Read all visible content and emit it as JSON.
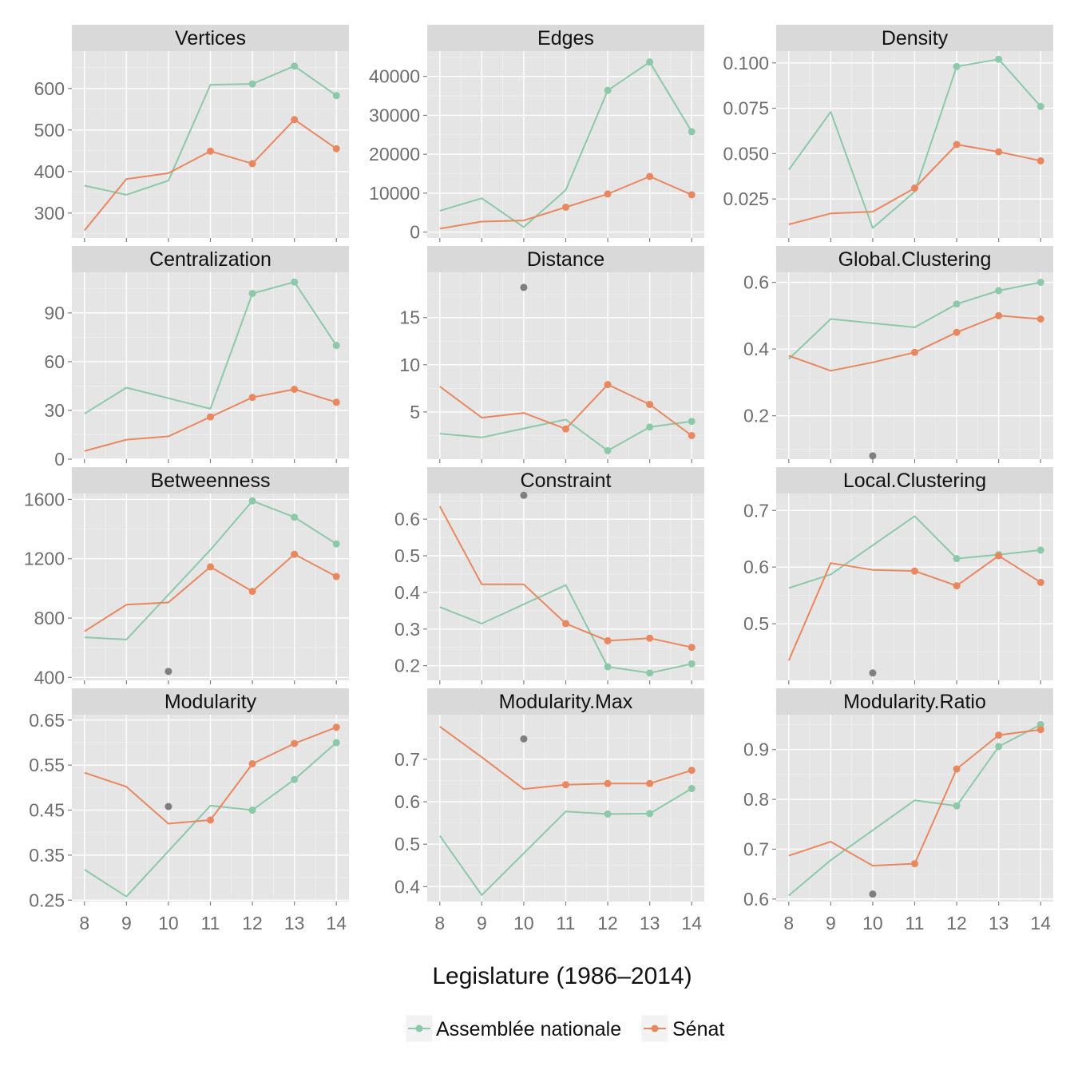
{
  "chart_data": {
    "type": "line",
    "xlabel": "Legislature (1986–2014)",
    "x_ticks": [
      8,
      9,
      10,
      11,
      12,
      13,
      14
    ],
    "xlim": [
      7.7,
      14.3
    ],
    "grid": true,
    "legend_position": "bottom",
    "legend": [
      {
        "name": "Assemblée nationale",
        "color": "#8cc9a9"
      },
      {
        "name": "Sénat",
        "color": "#e9875f"
      }
    ],
    "outlier_color": "#7f7f7f",
    "panels": [
      {
        "title": "Vertices",
        "ylim": [
          240,
          690
        ],
        "yticks": [
          300,
          400,
          500,
          600
        ],
        "series": [
          {
            "name": "Assemblée nationale",
            "x": [
              8,
              9,
              10,
              11,
              12,
              13,
              14
            ],
            "values": [
              366,
              344,
              378,
              609,
              611,
              654,
              583
            ],
            "points_from": 12
          },
          {
            "name": "Sénat",
            "x": [
              8,
              9,
              10,
              11,
              12,
              13,
              14
            ],
            "values": [
              258,
              382,
              396,
              449,
              419,
              525,
              455
            ],
            "points_from": 11
          }
        ]
      },
      {
        "title": "Edges",
        "ylim": [
          -1500,
          46500
        ],
        "yticks": [
          0,
          10000,
          20000,
          30000,
          40000
        ],
        "series": [
          {
            "name": "Assemblée nationale",
            "x": [
              8,
              9,
              10,
              11,
              12,
              13,
              14
            ],
            "values": [
              5500,
              8700,
              1300,
              10800,
              36400,
              43700,
              25800
            ],
            "points_from": 12
          },
          {
            "name": "Sénat",
            "x": [
              8,
              9,
              10,
              11,
              12,
              13,
              14
            ],
            "values": [
              900,
              2700,
              3000,
              6400,
              9800,
              14300,
              9600
            ],
            "points_from": 11
          }
        ]
      },
      {
        "title": "Density",
        "ylim": [
          0.0035,
          0.1065
        ],
        "yticks": [
          0.025,
          0.05,
          0.075,
          0.1
        ],
        "ytick_labels": [
          "0.025",
          "0.050",
          "0.075",
          "0.100"
        ],
        "series": [
          {
            "name": "Assemblée nationale",
            "x": [
              8,
              9,
              10,
              11,
              12,
              13,
              14
            ],
            "values": [
              0.041,
              0.073,
              0.009,
              0.029,
              0.098,
              0.102,
              0.076
            ],
            "points_from": 12
          },
          {
            "name": "Sénat",
            "x": [
              8,
              9,
              10,
              11,
              12,
              13,
              14
            ],
            "values": [
              0.011,
              0.017,
              0.018,
              0.031,
              0.055,
              0.051,
              0.046
            ],
            "points_from": 11
          }
        ]
      },
      {
        "title": "Centralization",
        "ylim": [
          0,
          115
        ],
        "yticks": [
          0,
          30,
          60,
          90
        ],
        "series": [
          {
            "name": "Assemblée nationale",
            "x": [
              8,
              9,
              11,
              12,
              13,
              14
            ],
            "values": [
              28,
              44,
              31,
              102,
              109,
              70
            ],
            "points_from": 12
          },
          {
            "name": "Sénat",
            "x": [
              8,
              9,
              10,
              11,
              12,
              13,
              14
            ],
            "values": [
              5,
              12,
              14,
              26,
              38,
              43,
              35
            ],
            "points_from": 11
          }
        ]
      },
      {
        "title": "Distance",
        "ylim": [
          0,
          19.8
        ],
        "yticks": [
          5,
          10,
          15
        ],
        "outliers": [
          {
            "x": 10,
            "y": 18.2
          }
        ],
        "series": [
          {
            "name": "Assemblée nationale",
            "x": [
              8,
              9,
              11,
              12,
              13,
              14
            ],
            "values": [
              2.7,
              2.3,
              4.2,
              0.9,
              3.4,
              4.0
            ],
            "points_from": 12
          },
          {
            "name": "Sénat",
            "x": [
              8,
              9,
              10,
              11,
              12,
              13,
              14
            ],
            "values": [
              7.7,
              4.4,
              4.9,
              3.2,
              7.9,
              5.8,
              2.5
            ],
            "points_from": 11
          }
        ]
      },
      {
        "title": "Global.Clustering",
        "ylim": [
          0.07,
          0.63
        ],
        "yticks": [
          0.2,
          0.4,
          0.6
        ],
        "outliers": [
          {
            "x": 10,
            "y": 0.08
          }
        ],
        "series": [
          {
            "name": "Assemblée nationale",
            "x": [
              8,
              9,
              11,
              12,
              13,
              14
            ],
            "values": [
              0.37,
              0.49,
              0.465,
              0.535,
              0.575,
              0.6
            ],
            "points_from": 12
          },
          {
            "name": "Sénat",
            "x": [
              8,
              9,
              10,
              11,
              12,
              13,
              14
            ],
            "values": [
              0.38,
              0.335,
              0.36,
              0.39,
              0.45,
              0.5,
              0.49
            ],
            "points_from": 11
          }
        ]
      },
      {
        "title": "Betweenness",
        "ylim": [
          380,
          1640
        ],
        "yticks": [
          400,
          800,
          1200,
          1600
        ],
        "outliers": [
          {
            "x": 10,
            "y": 440
          }
        ],
        "series": [
          {
            "name": "Assemblée nationale",
            "x": [
              8,
              9,
              11,
              12,
              13,
              14
            ],
            "values": [
              670,
              655,
              1260,
              1590,
              1480,
              1300
            ],
            "points_from": 12
          },
          {
            "name": "Sénat",
            "x": [
              8,
              9,
              10,
              11,
              12,
              13,
              14
            ],
            "values": [
              710,
              890,
              905,
              1145,
              980,
              1230,
              1080
            ],
            "points_from": 11
          }
        ]
      },
      {
        "title": "Constraint",
        "ylim": [
          0.16,
          0.67
        ],
        "yticks": [
          0.2,
          0.3,
          0.4,
          0.5,
          0.6
        ],
        "outliers": [
          {
            "x": 10,
            "y": 0.665
          }
        ],
        "series": [
          {
            "name": "Assemblée nationale",
            "x": [
              8,
              9,
              11,
              12,
              13,
              14
            ],
            "values": [
              0.36,
              0.315,
              0.42,
              0.197,
              0.18,
              0.205
            ],
            "points_from": 12
          },
          {
            "name": "Sénat",
            "x": [
              8,
              9,
              10,
              11,
              12,
              13,
              14
            ],
            "values": [
              0.635,
              0.422,
              0.422,
              0.315,
              0.268,
              0.275,
              0.25
            ],
            "points_from": 11
          }
        ]
      },
      {
        "title": "Local.Clustering",
        "ylim": [
          0.4,
          0.73
        ],
        "yticks": [
          0.5,
          0.6,
          0.7
        ],
        "outliers": [
          {
            "x": 10,
            "y": 0.413
          }
        ],
        "series": [
          {
            "name": "Assemblée nationale",
            "x": [
              8,
              9,
              11,
              12,
              13,
              14
            ],
            "values": [
              0.563,
              0.587,
              0.69,
              0.615,
              0.622,
              0.63
            ],
            "points_from": 12
          },
          {
            "name": "Sénat",
            "x": [
              8,
              9,
              10,
              11,
              12,
              13,
              14
            ],
            "values": [
              0.435,
              0.607,
              0.595,
              0.593,
              0.567,
              0.62,
              0.573
            ],
            "points_from": 11
          }
        ]
      },
      {
        "title": "Modularity",
        "ylim": [
          0.247,
          0.662
        ],
        "yticks": [
          0.25,
          0.35,
          0.45,
          0.55,
          0.65
        ],
        "outliers": [
          {
            "x": 10,
            "y": 0.458
          }
        ],
        "series": [
          {
            "name": "Assemblée nationale",
            "x": [
              8,
              9,
              11,
              12,
              13,
              14
            ],
            "values": [
              0.318,
              0.258,
              0.46,
              0.45,
              0.518,
              0.6
            ],
            "points_from": 12
          },
          {
            "name": "Sénat",
            "x": [
              8,
              9,
              10,
              11,
              12,
              13,
              14
            ],
            "values": [
              0.533,
              0.502,
              0.42,
              0.428,
              0.553,
              0.598,
              0.634
            ],
            "points_from": 11
          }
        ]
      },
      {
        "title": "Modularity.Max",
        "ylim": [
          0.365,
          0.805
        ],
        "yticks": [
          0.4,
          0.5,
          0.6,
          0.7
        ],
        "outliers": [
          {
            "x": 10,
            "y": 0.748
          }
        ],
        "series": [
          {
            "name": "Assemblée nationale",
            "x": [
              8,
              9,
              11,
              12,
              13,
              14
            ],
            "values": [
              0.52,
              0.38,
              0.577,
              0.571,
              0.572,
              0.631
            ],
            "points_from": 12
          },
          {
            "name": "Sénat",
            "x": [
              8,
              9,
              10,
              11,
              12,
              13,
              14
            ],
            "values": [
              0.777,
              0.705,
              0.63,
              0.64,
              0.643,
              0.643,
              0.674
            ],
            "points_from": 11
          }
        ]
      },
      {
        "title": "Modularity.Ratio",
        "ylim": [
          0.595,
          0.97
        ],
        "yticks": [
          0.6,
          0.7,
          0.8,
          0.9
        ],
        "outliers": [
          {
            "x": 10,
            "y": 0.61
          }
        ],
        "series": [
          {
            "name": "Assemblée nationale",
            "x": [
              8,
              9,
              11,
              12,
              13,
              14
            ],
            "values": [
              0.607,
              0.678,
              0.798,
              0.787,
              0.906,
              0.95
            ],
            "points_from": 12
          },
          {
            "name": "Sénat",
            "x": [
              8,
              9,
              10,
              11,
              12,
              13,
              14
            ],
            "values": [
              0.687,
              0.715,
              0.667,
              0.671,
              0.861,
              0.929,
              0.94
            ],
            "points_from": 11
          }
        ]
      }
    ]
  }
}
